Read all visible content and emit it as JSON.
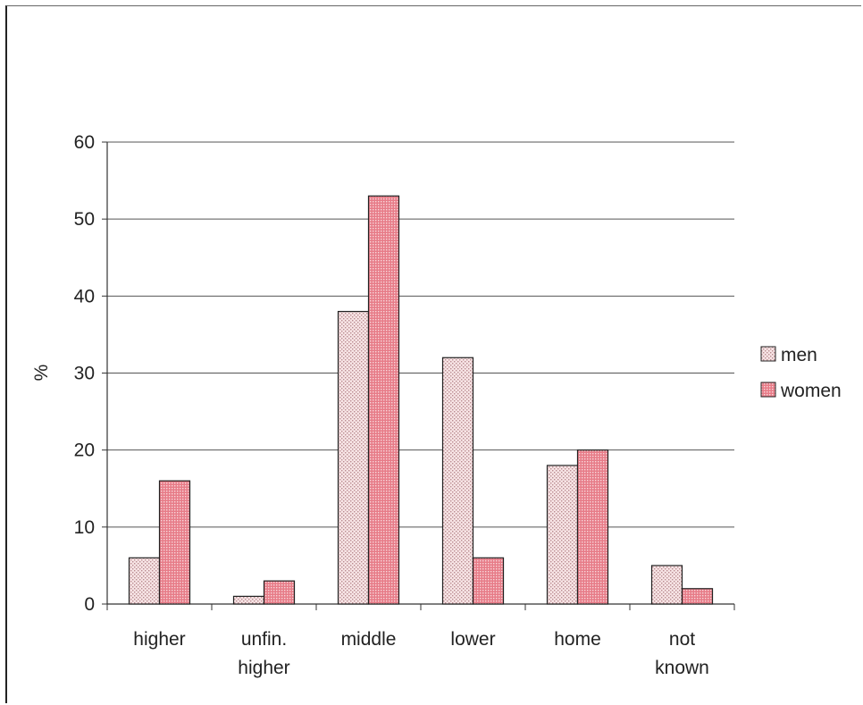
{
  "chart_data": {
    "type": "bar",
    "categories": [
      [
        "higher"
      ],
      [
        "unfin.",
        "higher"
      ],
      [
        "middle"
      ],
      [
        "lower"
      ],
      [
        "home"
      ],
      [
        "not",
        "known"
      ]
    ],
    "series": [
      {
        "name": "men",
        "values": [
          6,
          1,
          38,
          32,
          18,
          5
        ],
        "color": "#f4d6d8",
        "pattern": "dots-light"
      },
      {
        "name": "women",
        "values": [
          16,
          3,
          53,
          6,
          20,
          2
        ],
        "color": "#e8848e",
        "pattern": "dots-dense"
      }
    ],
    "ylabel": "%",
    "ylim": [
      0,
      60
    ],
    "yticks": [
      0,
      10,
      20,
      30,
      40,
      50,
      60
    ],
    "grid": true,
    "legend": "right"
  }
}
